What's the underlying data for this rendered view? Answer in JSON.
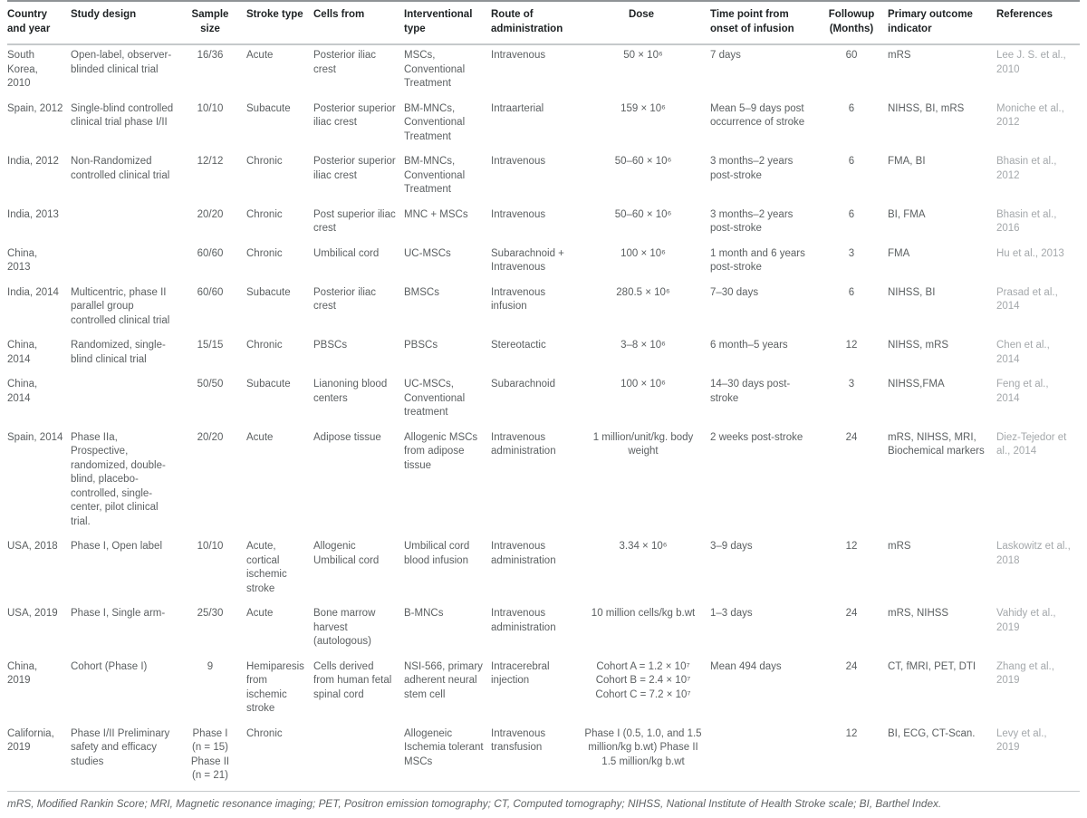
{
  "table": {
    "columns": [
      "Country and year",
      "Study design",
      "Sample size",
      "Stroke type",
      "Cells from",
      "Interventional type",
      "Route of administration",
      "Dose",
      "Time point from onset of infusion",
      "Followup (Months)",
      "Primary outcome indicator",
      "References"
    ],
    "rows": [
      [
        "South Korea, 2010",
        "Open-label, observer-blinded clinical trial",
        "16/36",
        "Acute",
        "Posterior iliac crest",
        "MSCs, Conventional Treatment",
        "Intravenous",
        "50 × 10⁶",
        "7 days",
        "60",
        "mRS",
        "Lee J. S. et al., 2010"
      ],
      [
        "Spain, 2012",
        "Single-blind controlled clinical trial phase I/II",
        "10/10",
        "Subacute",
        "Posterior superior iliac crest",
        "BM-MNCs, Conventional Treatment",
        "Intraarterial",
        "159 × 10⁶",
        "Mean 5–9 days post occurrence of stroke",
        "6",
        "NIHSS, BI, mRS",
        "Moniche et al., 2012"
      ],
      [
        "India, 2012",
        "Non-Randomized controlled clinical trial",
        "12/12",
        "Chronic",
        "Posterior superior iliac crest",
        "BM-MNCs, Conventional Treatment",
        "Intravenous",
        "50–60 × 10⁶",
        "3 months–2 years post-stroke",
        "6",
        "FMA, BI",
        "Bhasin et al., 2012"
      ],
      [
        "India, 2013",
        "",
        "20/20",
        "Chronic",
        "Post superior iliac crest",
        "MNC + MSCs",
        "Intravenous",
        "50–60 × 10⁶",
        "3 months–2 years post-stroke",
        "6",
        "BI, FMA",
        "Bhasin et al., 2016"
      ],
      [
        "China, 2013",
        "",
        "60/60",
        "Chronic",
        "Umbilical cord",
        "UC-MSCs",
        "Subarachnoid + Intravenous",
        "100 × 10⁶",
        "1 month and 6 years post-stroke",
        "3",
        "FMA",
        "Hu et al., 2013"
      ],
      [
        "India, 2014",
        "Multicentric, phase II parallel group controlled clinical trial",
        "60/60",
        "Subacute",
        "Posterior iliac crest",
        "BMSCs",
        "Intravenous infusion",
        "280.5 × 10⁶",
        "7–30 days",
        "6",
        "NIHSS, BI",
        "Prasad et al., 2014"
      ],
      [
        "China, 2014",
        "Randomized, single-blind clinical trial",
        "15/15",
        "Chronic",
        "PBSCs",
        "PBSCs",
        "Stereotactic",
        "3–8 × 10⁶",
        "6 month–5 years",
        "12",
        "NIHSS, mRS",
        "Chen et al., 2014"
      ],
      [
        "China, 2014",
        "",
        "50/50",
        "Subacute",
        "Lianoning blood centers",
        "UC-MSCs, Conventional treatment",
        "Subarachnoid",
        "100 × 10⁶",
        "14–30 days post-stroke",
        "3",
        "NIHSS,FMA",
        "Feng et al., 2014"
      ],
      [
        "Spain, 2014",
        "Phase IIa, Prospective, randomized, double-blind, placebo-controlled, single-center, pilot clinical trial.",
        "20/20",
        "Acute",
        "Adipose tissue",
        "Allogenic MSCs from adipose tissue",
        "Intravenous administration",
        "1 million/unit/kg. body weight",
        "2 weeks post-stroke",
        "24",
        "mRS, NIHSS, MRI, Biochemical markers",
        "Diez-Tejedor et al., 2014"
      ],
      [
        "USA, 2018",
        "Phase I, Open label",
        "10/10",
        "Acute, cortical ischemic stroke",
        "Allogenic Umbilical cord",
        "Umbilical cord blood infusion",
        "Intravenous administration",
        "3.34 × 10⁶",
        "3–9 days",
        "12",
        "mRS",
        "Laskowitz et al., 2018"
      ],
      [
        "USA, 2019",
        "Phase I, Single arm-",
        "25/30",
        "Acute",
        "Bone marrow harvest (autologous)",
        "B-MNCs",
        "Intravenous administration",
        "10 million cells/kg b.wt",
        "1–3 days",
        "24",
        "mRS, NIHSS",
        "Vahidy et al., 2019"
      ],
      [
        "China, 2019",
        "Cohort (Phase I)",
        "9",
        "Hemiparesis from ischemic stroke",
        "Cells derived from human fetal spinal cord",
        "NSI-566, primary adherent neural stem cell",
        "Intracerebral injection",
        "Cohort A = 1.2 × 10⁷\nCohort B = 2.4 × 10⁷\nCohort C = 7.2 × 10⁷",
        "Mean 494 days",
        "24",
        "CT, fMRI, PET, DTI",
        "Zhang et al., 2019"
      ],
      [
        "California, 2019",
        "Phase I/II Preliminary safety and efficacy studies",
        "Phase I\n(n = 15)\nPhase II\n(n = 21)",
        "Chronic",
        "",
        "Allogeneic Ischemia tolerant MSCs",
        "Intravenous transfusion",
        "Phase I (0.5, 1.0, and 1.5 million/kg b.wt) Phase II 1.5 million/kg b.wt",
        "",
        "12",
        "BI, ECG, CT-Scan.",
        "Levy et al., 2019"
      ]
    ],
    "footnote": "mRS, Modified Rankin Score; MRI, Magnetic resonance imaging; PET, Positron emission tomography; CT, Computed tomography; NIHSS, National Institute of Health Stroke scale; BI, Barthel Index."
  }
}
